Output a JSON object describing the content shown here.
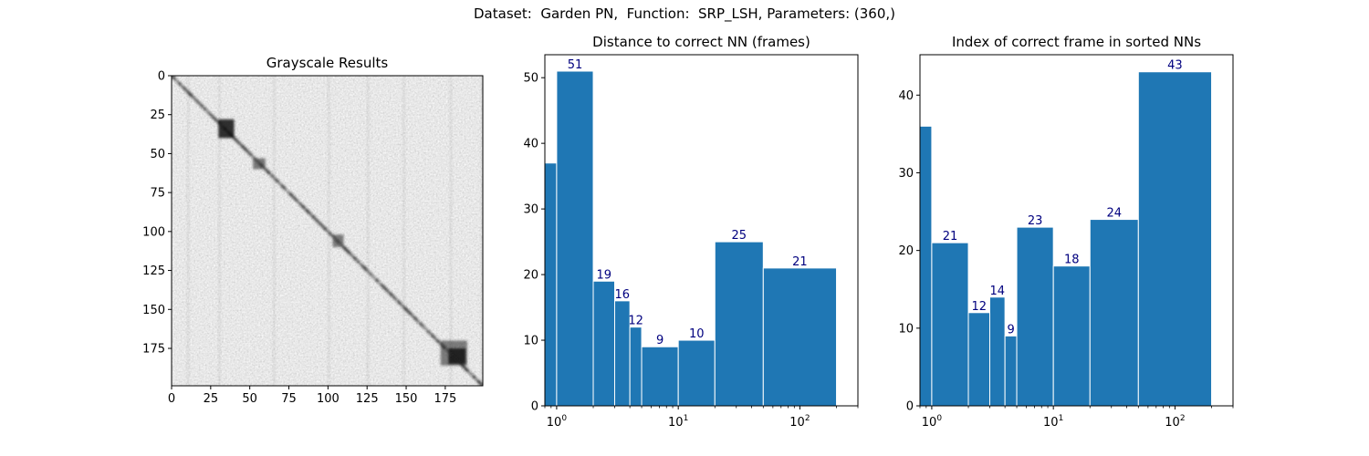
{
  "figure": {
    "suptitle": "Dataset:  Garden PN,  Function:  SRP_LSH, Parameters: (360,)"
  },
  "chart_data": [
    {
      "type": "heatmap",
      "title": "Grayscale Results",
      "xlim": [
        0,
        199
      ],
      "ylim": [
        199,
        0
      ],
      "xticks": [
        0,
        25,
        50,
        75,
        100,
        125,
        150,
        175
      ],
      "yticks": [
        0,
        25,
        50,
        75,
        100,
        125,
        150,
        175
      ],
      "colormap": "gray",
      "pattern": "noisy light-gray similarity matrix with a dark diagonal band; darker blocks near (35,35) and (180,180)"
    },
    {
      "type": "bar",
      "title": "Distance to correct NN (frames)",
      "xscale": "log",
      "xlim": [
        0.8,
        300
      ],
      "ylim": [
        0,
        53.5
      ],
      "yticks": [
        0,
        10,
        20,
        30,
        40,
        50
      ],
      "xtick_labels": [
        "10^0",
        "10^1",
        "10^2"
      ],
      "bin_edges": [
        0,
        1,
        2,
        3,
        4,
        5,
        10,
        20,
        50,
        200
      ],
      "values": [
        37,
        51,
        19,
        16,
        12,
        9,
        10,
        25,
        21
      ],
      "bar_labels": [
        "",
        "51",
        "19",
        "16",
        "12",
        "9",
        "10",
        "25",
        "21"
      ],
      "color": "#1f77b4",
      "label_color": "#00007f"
    },
    {
      "type": "bar",
      "title": "Index of correct frame in sorted NNs",
      "xscale": "log",
      "xlim": [
        0.8,
        300
      ],
      "ylim": [
        0,
        45.2
      ],
      "yticks": [
        0,
        10,
        20,
        30,
        40
      ],
      "xtick_labels": [
        "10^0",
        "10^1",
        "10^2"
      ],
      "bin_edges": [
        0,
        1,
        2,
        3,
        4,
        5,
        10,
        20,
        50,
        200
      ],
      "values": [
        36,
        21,
        12,
        14,
        9,
        23,
        18,
        24,
        43
      ],
      "bar_labels": [
        "",
        "21",
        "12",
        "14",
        "9",
        "23",
        "18",
        "24",
        "43"
      ],
      "color": "#1f77b4",
      "label_color": "#00007f"
    }
  ]
}
